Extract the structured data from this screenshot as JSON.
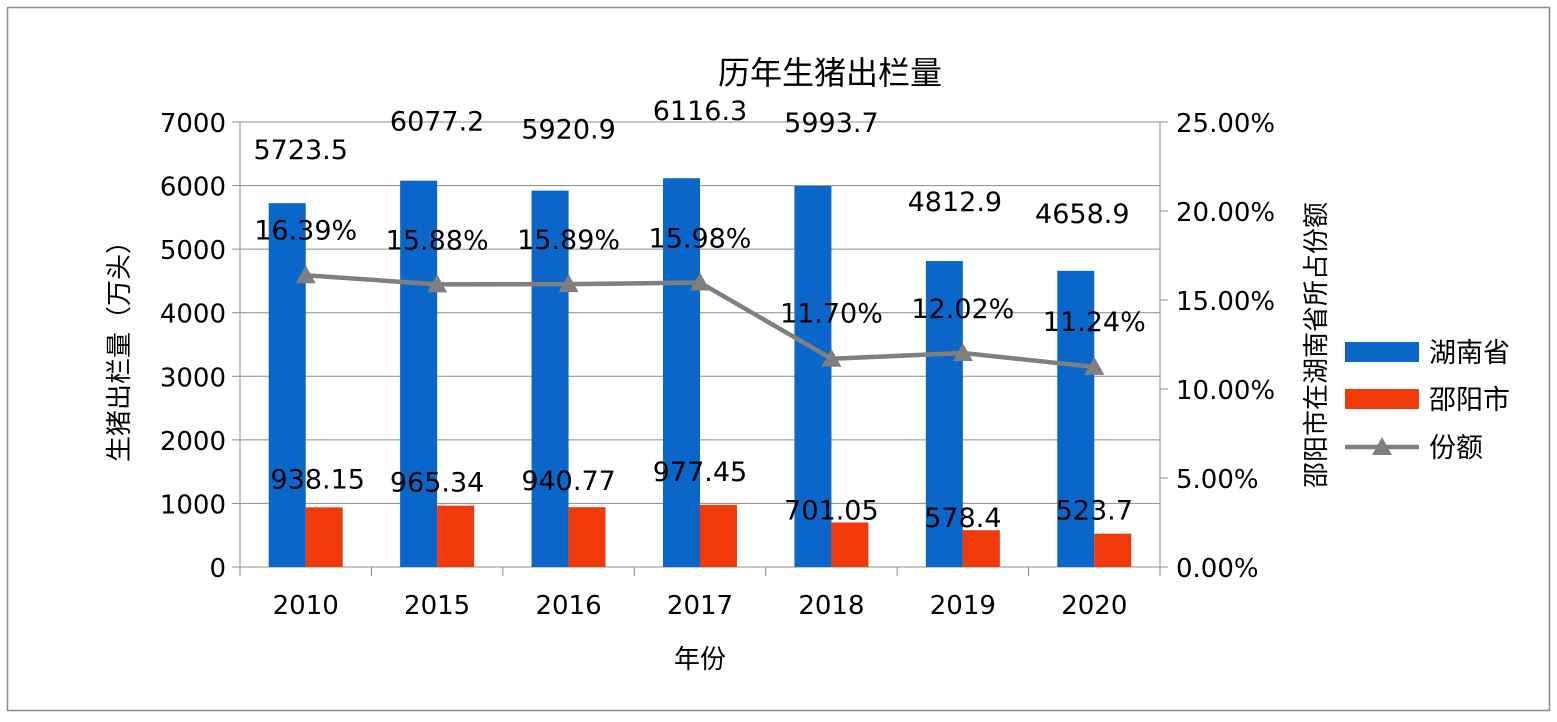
{
  "chart_data": {
    "type": "bar",
    "title": "历年生猪出栏量",
    "xlabel": "年份",
    "ylabel": "生猪出栏量（万头）",
    "y2label": "邵阳市在湖南省所占份额",
    "categories": [
      "2010",
      "2015",
      "2016",
      "2017",
      "2018",
      "2019",
      "2020"
    ],
    "ylim": [
      0,
      7000
    ],
    "yticks": [
      "0",
      "1000",
      "2000",
      "3000",
      "4000",
      "5000",
      "6000",
      "7000"
    ],
    "y2lim": [
      0,
      25
    ],
    "y2ticks": [
      "0.00%",
      "5.00%",
      "10.00%",
      "15.00%",
      "20.00%",
      "25.00%"
    ],
    "grid": true,
    "legend_position": "right",
    "series": [
      {
        "name": "湖南省",
        "type": "bar",
        "color": "#0a66c8",
        "values": [
          5723.5,
          6077.2,
          5920.9,
          6116.3,
          5993.7,
          4812.9,
          4658.9
        ],
        "labels": [
          "5723.5",
          "6077.2",
          "5920.9",
          "6116.3",
          "5993.7",
          "4812.9",
          "4658.9"
        ]
      },
      {
        "name": "邵阳市",
        "type": "bar",
        "color": "#f03a0a",
        "values": [
          938.15,
          965.34,
          940.77,
          977.45,
          701.05,
          578.4,
          523.7
        ],
        "labels": [
          "938.15",
          "965.34",
          "940.77",
          "977.45",
          "701.05",
          "578.4",
          "523.7"
        ]
      },
      {
        "name": "份额",
        "type": "line",
        "axis": "right",
        "color": "#7f7f7f",
        "values": [
          16.39,
          15.88,
          15.89,
          15.98,
          11.7,
          12.02,
          11.24
        ],
        "labels": [
          "16.39%",
          "15.88%",
          "15.89%",
          "15.98%",
          "11.70%",
          "12.02%",
          "11.24%"
        ]
      }
    ]
  }
}
